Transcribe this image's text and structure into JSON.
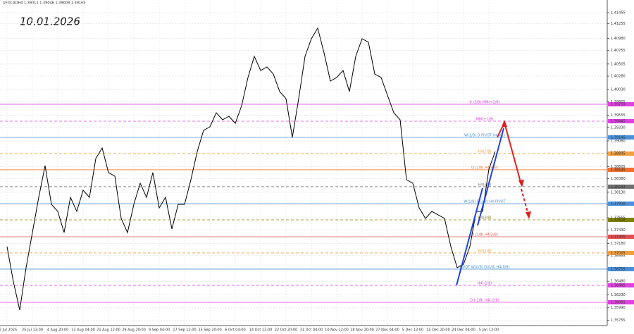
{
  "chart_data": {
    "type": "line",
    "title": "USDCADH4  1.39011 1.39046 1.39009 1.39165",
    "annotation": "10.01.2026",
    "categories": [
      "17 Jul 2025",
      null,
      null,
      null,
      "25 Jul 12:00",
      null,
      null,
      null,
      "4 Aug 20:00",
      null,
      null,
      null,
      "13 Aug 04:00",
      null,
      null,
      null,
      "21 Aug 12:00",
      null,
      null,
      null,
      "29 Aug 20:00",
      null,
      null,
      null,
      "9 Sep 04:00",
      null,
      null,
      null,
      "17 Sep 12:00",
      null,
      null,
      null,
      "25 Sep 20:00",
      null,
      null,
      null,
      "6 Oct 04:00",
      null,
      null,
      null,
      "14 Oct 12:00",
      null,
      null,
      null,
      "22 Oct 20:00",
      null,
      null,
      null,
      "31 Oct 04:00",
      null,
      null,
      null,
      "10 Nov 12:00",
      null,
      null,
      null,
      "18 Nov 20:00",
      null,
      null,
      null,
      "27 Nov 04:00",
      null,
      null,
      null,
      "5 Dec 12:00",
      null,
      null,
      null,
      "15 Dec 20:00",
      null,
      null,
      null,
      "24 Dec 04:00",
      null,
      null,
      null,
      "5 Jan 12:00",
      null
    ],
    "series": [
      {
        "name": "USDCAD",
        "color": "#000000",
        "values": [
          1.37122,
          1.3647,
          1.35948,
          1.36731,
          1.37383,
          1.38036,
          1.38623,
          1.37905,
          1.37775,
          1.37383,
          1.38036,
          1.37775,
          1.38166,
          1.38036,
          1.38754,
          1.38949,
          1.38493,
          1.38427,
          1.37644,
          1.37383,
          1.37905,
          1.38297,
          1.38036,
          1.38493,
          1.3784,
          1.38036,
          1.37449,
          1.37905,
          1.37905,
          1.38362,
          1.38884,
          1.39276,
          1.39341,
          1.39602,
          1.39471,
          1.39537,
          1.39406,
          1.39732,
          1.40254,
          1.40646,
          1.40385,
          1.4045,
          1.4032,
          1.39993,
          1.39863,
          1.39145,
          1.39863,
          1.40646,
          1.40972,
          1.41168,
          1.40711,
          1.40189,
          1.40254,
          1.40385,
          1.39993,
          1.40646,
          1.40972,
          1.40907,
          1.4032,
          1.40254,
          1.39928,
          1.39602,
          1.39471,
          1.38362,
          1.38297,
          1.3784,
          1.37644,
          1.37775,
          1.3771,
          1.37644,
          1.37122,
          1.36731,
          1.36796,
          1.37122,
          1.37775,
          1.37775,
          1.38558,
          1.38884
        ]
      }
    ],
    "ylim": [
      1.3566,
      1.4169
    ],
    "yticks": [
      1.41455,
      1.41255,
      {
        "value": 1.4098,
        "label": "1.40980"
      },
      1.40755,
      1.40505,
      {
        "value": 1.4028,
        "label": "1.40280"
      },
      {
        "value": 1.4003,
        "label": "1.40030"
      },
      1.39805,
      1.39555,
      {
        "value": 1.3933,
        "label": "1.39330"
      },
      {
        "value": 1.3908,
        "label": "1.39080"
      },
      1.38855,
      1.38605,
      {
        "value": 1.3838,
        "label": "1.38380"
      },
      {
        "value": 1.3813,
        "label": "1.38130"
      },
      1.37905,
      1.37655,
      {
        "value": 1.3743,
        "label": "1.37430"
      },
      {
        "value": 1.3718,
        "label": "1.37180"
      },
      1.36955,
      1.36705,
      {
        "value": 1.3648,
        "label": "1.36480"
      },
      {
        "value": 1.3623,
        "label": "1.36230"
      },
      {
        "value": 1.3599,
        "label": "1.35990"
      },
      1.35755
    ],
    "grid": true,
    "levels": [
      {
        "label": "0 (3/8) MM(+2/8)",
        "value": 1.39759,
        "color": "#e040e0",
        "dashed": false
      },
      {
        "label": "MM(+1/8)",
        "value": 1.39445,
        "color": "#e040e0",
        "dashed": true
      },
      {
        "label": "W(1/8) D PIVOT H4R(1)",
        "value": 1.39145,
        "color": "#4a90d9",
        "dashed": false
      },
      {
        "label": "H4(7/8)",
        "value": 1.38845,
        "color": "#f0a040",
        "dashed": true
      },
      {
        "label": "D (2/8) H4(6/8)",
        "value": 1.38545,
        "color": "#f07030",
        "dashed": false
      },
      {
        "label": "H4(5/8)",
        "value": 1.38232,
        "color": "#707070",
        "dashed": true
      },
      {
        "label": "W(1/8) D(1/8) H4 PIVOT",
        "value": 1.37918,
        "color": "#4a90d9",
        "dashed": false
      },
      {
        "label": "H4(3/8)",
        "value": 1.37618,
        "color": "#808000",
        "dashed": true
      },
      {
        "label": "D (1/8) H4(2/8)",
        "value": 1.37305,
        "color": "#e05050",
        "dashed": false
      },
      {
        "label": "H4(1/8)",
        "value": 1.37005,
        "color": "#f0a040",
        "dashed": true
      },
      {
        "label": "PIVOT W(0/8) D(0/8) H4(0/8)",
        "value": 1.36705,
        "color": "#4a90d9",
        "dashed": false
      },
      {
        "label": "H4(-1/8)",
        "value": 1.36405,
        "color": "#e040e0",
        "dashed": true
      },
      {
        "label": "D (-1/8) H4(-2/8)",
        "value": 1.36091,
        "color": "#e040e0",
        "dashed": false
      }
    ]
  }
}
